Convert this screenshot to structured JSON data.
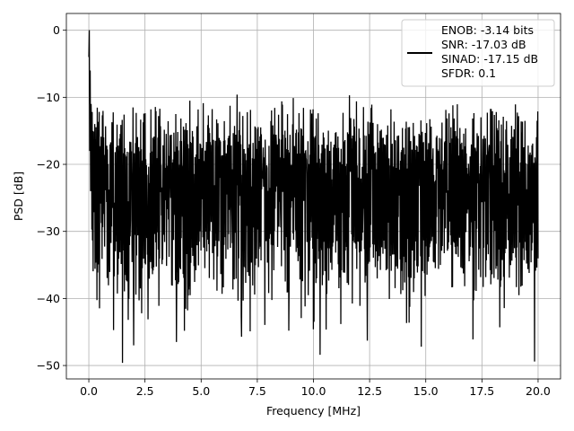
{
  "chart_data": {
    "type": "line",
    "title": "",
    "xlabel": "Frequency [MHz]",
    "ylabel": "PSD [dB]",
    "xlim": [
      -1.0,
      21.0
    ],
    "ylim": [
      -52.0,
      2.5
    ],
    "xticks": [
      0.0,
      2.5,
      5.0,
      7.5,
      10.0,
      12.5,
      15.0,
      17.5,
      20.0
    ],
    "xtick_labels": [
      "0.0",
      "2.5",
      "5.0",
      "7.5",
      "10.0",
      "12.5",
      "15.0",
      "17.5",
      "20.0"
    ],
    "yticks": [
      0,
      -10,
      -20,
      -30,
      -40,
      -50
    ],
    "ytick_labels": [
      "0",
      "−10",
      "−20",
      "−30",
      "−40",
      "−50"
    ],
    "grid": true,
    "legend_position": "top-right",
    "series": [
      {
        "color": "#000000",
        "legend_lines": [
          "ENOB: -3.14 bits",
          "SNR: -17.03 dB",
          "SINAD: -17.15 dB",
          "SFDR: 0.1"
        ],
        "x_start": 0.0,
        "x_end": 20.0,
        "peak": {
          "x": 0.02,
          "y": 0.0
        },
        "noise": {
          "top_typical": -15,
          "mean": -23,
          "bottom_typical": -33,
          "min": -49.6,
          "max": -9.6
        },
        "extremes": [
          {
            "x": 1.5,
            "y": -49.6
          },
          {
            "x": 19.85,
            "y": -49.4
          },
          {
            "x": 10.3,
            "y": -48.4
          },
          {
            "x": 14.8,
            "y": -47.2
          },
          {
            "x": 2.0,
            "y": -47.0
          },
          {
            "x": 12.4,
            "y": -46.3
          },
          {
            "x": 17.1,
            "y": -46.1
          },
          {
            "x": 6.8,
            "y": -45.7
          },
          {
            "x": 8.9,
            "y": -44.8
          },
          {
            "x": 3.9,
            "y": -46.5
          },
          {
            "x": 6.6,
            "y": -9.6
          },
          {
            "x": 11.6,
            "y": -9.7
          },
          {
            "x": 9.1,
            "y": -10.1
          },
          {
            "x": 4.5,
            "y": -10.5
          },
          {
            "x": 16.2,
            "y": -11.2
          },
          {
            "x": 0.15,
            "y": -12.2
          }
        ]
      }
    ]
  }
}
